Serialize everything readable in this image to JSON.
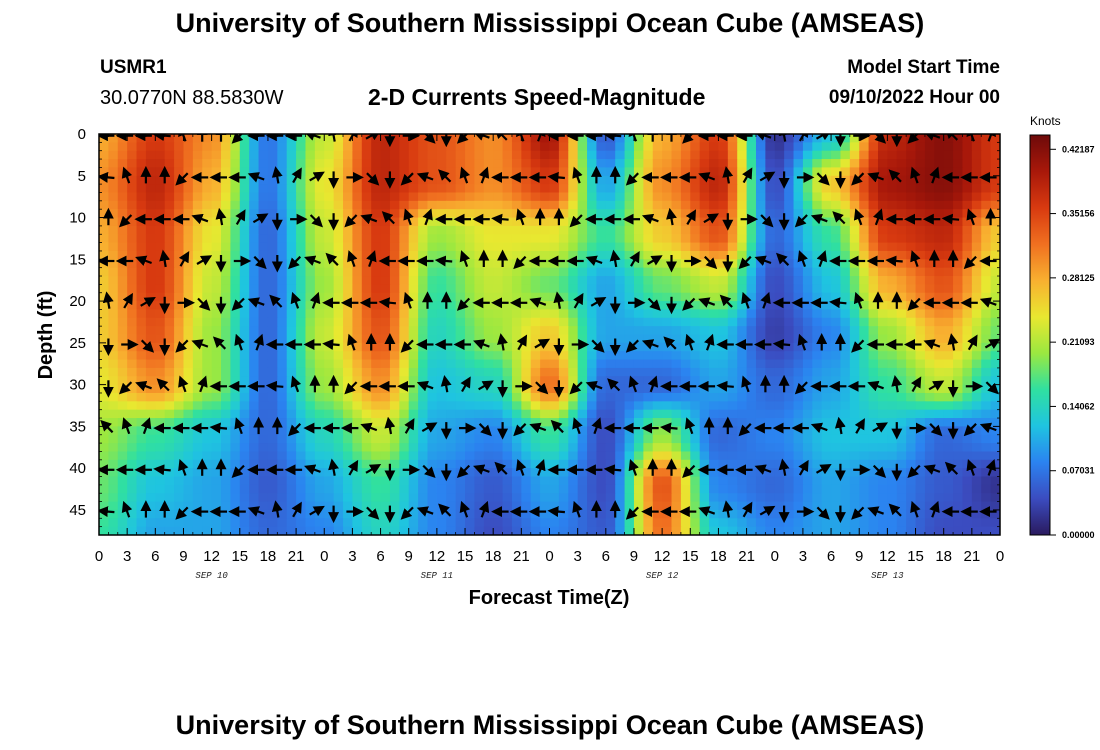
{
  "title": "University of Southern Mississippi Ocean Cube (AMSEAS)",
  "station": {
    "name": "USMR1",
    "coords": "30.0770N  88.5830W"
  },
  "model_start": {
    "label": "Model Start Time",
    "value": "09/10/2022 Hour 00"
  },
  "chart_data": {
    "type": "heatmap",
    "title": "2-D Currents Speed-Magnitude",
    "xlabel": "Forecast Time(Z)",
    "ylabel": "Depth (ft)",
    "x_ticks": [
      "0",
      "3",
      "6",
      "9",
      "12",
      "15",
      "18",
      "21",
      "0",
      "3",
      "6",
      "9",
      "12",
      "15",
      "18",
      "21",
      "0",
      "3",
      "6",
      "9",
      "12",
      "15",
      "18",
      "21",
      "0",
      "3",
      "6",
      "9",
      "12",
      "15",
      "18",
      "21",
      "0"
    ],
    "x_hours": [
      0,
      96
    ],
    "date_labels": [
      {
        "label": "SEP 10",
        "hour": 12
      },
      {
        "label": "SEP 11",
        "hour": 36
      },
      {
        "label": "SEP 12",
        "hour": 60
      },
      {
        "label": "SEP 13",
        "hour": 84
      }
    ],
    "y_ticks": [
      "0",
      "5",
      "10",
      "15",
      "20",
      "25",
      "30",
      "35",
      "40",
      "45"
    ],
    "ylim": [
      0,
      48
    ],
    "colorbar": {
      "unit": "Knots",
      "ticks": [
        "0.42187",
        "0.35156",
        "0.28125",
        "0.21093",
        "0.14062",
        "0.07031",
        "0.00000"
      ],
      "range": [
        0.0,
        0.4375
      ],
      "colors": [
        "#2a1a5e",
        "#3b4cc0",
        "#2b83f0",
        "#1fc4e0",
        "#30e0a0",
        "#9be840",
        "#e8e830",
        "#f8b030",
        "#f07020",
        "#d83a10",
        "#a8180a",
        "#6e0a0a"
      ]
    },
    "grid_times": [
      0,
      6,
      12,
      18,
      24,
      30,
      36,
      42,
      48,
      54,
      60,
      66,
      72,
      78,
      84,
      90,
      96
    ],
    "grid_depths": [
      0,
      6,
      12,
      18,
      24,
      30,
      36,
      42,
      48
    ],
    "speed_grid": [
      [
        0.28,
        0.36,
        0.3,
        0.07,
        0.22,
        0.38,
        0.34,
        0.3,
        0.4,
        0.05,
        0.28,
        0.36,
        0.02,
        0.12,
        0.38,
        0.42,
        0.36
      ],
      [
        0.3,
        0.38,
        0.28,
        0.07,
        0.24,
        0.38,
        0.34,
        0.3,
        0.36,
        0.1,
        0.3,
        0.38,
        0.04,
        0.26,
        0.4,
        0.42,
        0.36
      ],
      [
        0.28,
        0.36,
        0.24,
        0.06,
        0.22,
        0.36,
        0.2,
        0.24,
        0.24,
        0.16,
        0.26,
        0.34,
        0.06,
        0.16,
        0.36,
        0.38,
        0.26
      ],
      [
        0.26,
        0.36,
        0.22,
        0.06,
        0.2,
        0.36,
        0.16,
        0.22,
        0.18,
        0.1,
        0.18,
        0.22,
        0.04,
        0.12,
        0.28,
        0.34,
        0.22
      ],
      [
        0.26,
        0.34,
        0.2,
        0.06,
        0.22,
        0.34,
        0.14,
        0.2,
        0.26,
        0.1,
        0.1,
        0.12,
        0.03,
        0.08,
        0.2,
        0.28,
        0.18
      ],
      [
        0.24,
        0.3,
        0.2,
        0.06,
        0.2,
        0.3,
        0.12,
        0.14,
        0.32,
        0.06,
        0.06,
        0.1,
        0.06,
        0.1,
        0.16,
        0.22,
        0.12
      ],
      [
        0.2,
        0.16,
        0.12,
        0.06,
        0.14,
        0.22,
        0.1,
        0.08,
        0.16,
        0.04,
        0.2,
        0.06,
        0.08,
        0.12,
        0.12,
        0.06,
        0.08
      ],
      [
        0.18,
        0.12,
        0.1,
        0.05,
        0.1,
        0.16,
        0.08,
        0.05,
        0.1,
        0.04,
        0.34,
        0.08,
        0.06,
        0.1,
        0.08,
        0.05,
        0.02
      ],
      [
        0.16,
        0.1,
        0.1,
        0.06,
        0.08,
        0.14,
        0.08,
        0.04,
        0.08,
        0.05,
        0.32,
        0.12,
        0.08,
        0.1,
        0.08,
        0.04,
        0.04
      ]
    ],
    "arrow_times": [
      1,
      3,
      5,
      7,
      9,
      11,
      13,
      15,
      17,
      19,
      21,
      23,
      25,
      27,
      29,
      31,
      33,
      35,
      37,
      39,
      41,
      43,
      45,
      47,
      49,
      51,
      53,
      55,
      57,
      59,
      61,
      63,
      65,
      67,
      69,
      71,
      73,
      75,
      77,
      79,
      81,
      83,
      85,
      87,
      89,
      91,
      93,
      95
    ],
    "arrow_depths": [
      0.2,
      5.2,
      10.2,
      15.2,
      20.2,
      25.2,
      30.2,
      35.2,
      40.2,
      45.2
    ],
    "arrow_direction_pattern_deg": [
      180,
      180,
      180,
      185,
      250,
      270,
      270,
      135,
      180,
      180,
      180,
      200,
      260,
      300,
      330,
      90,
      0,
      45,
      90,
      135,
      200,
      225,
      250,
      290
    ]
  }
}
